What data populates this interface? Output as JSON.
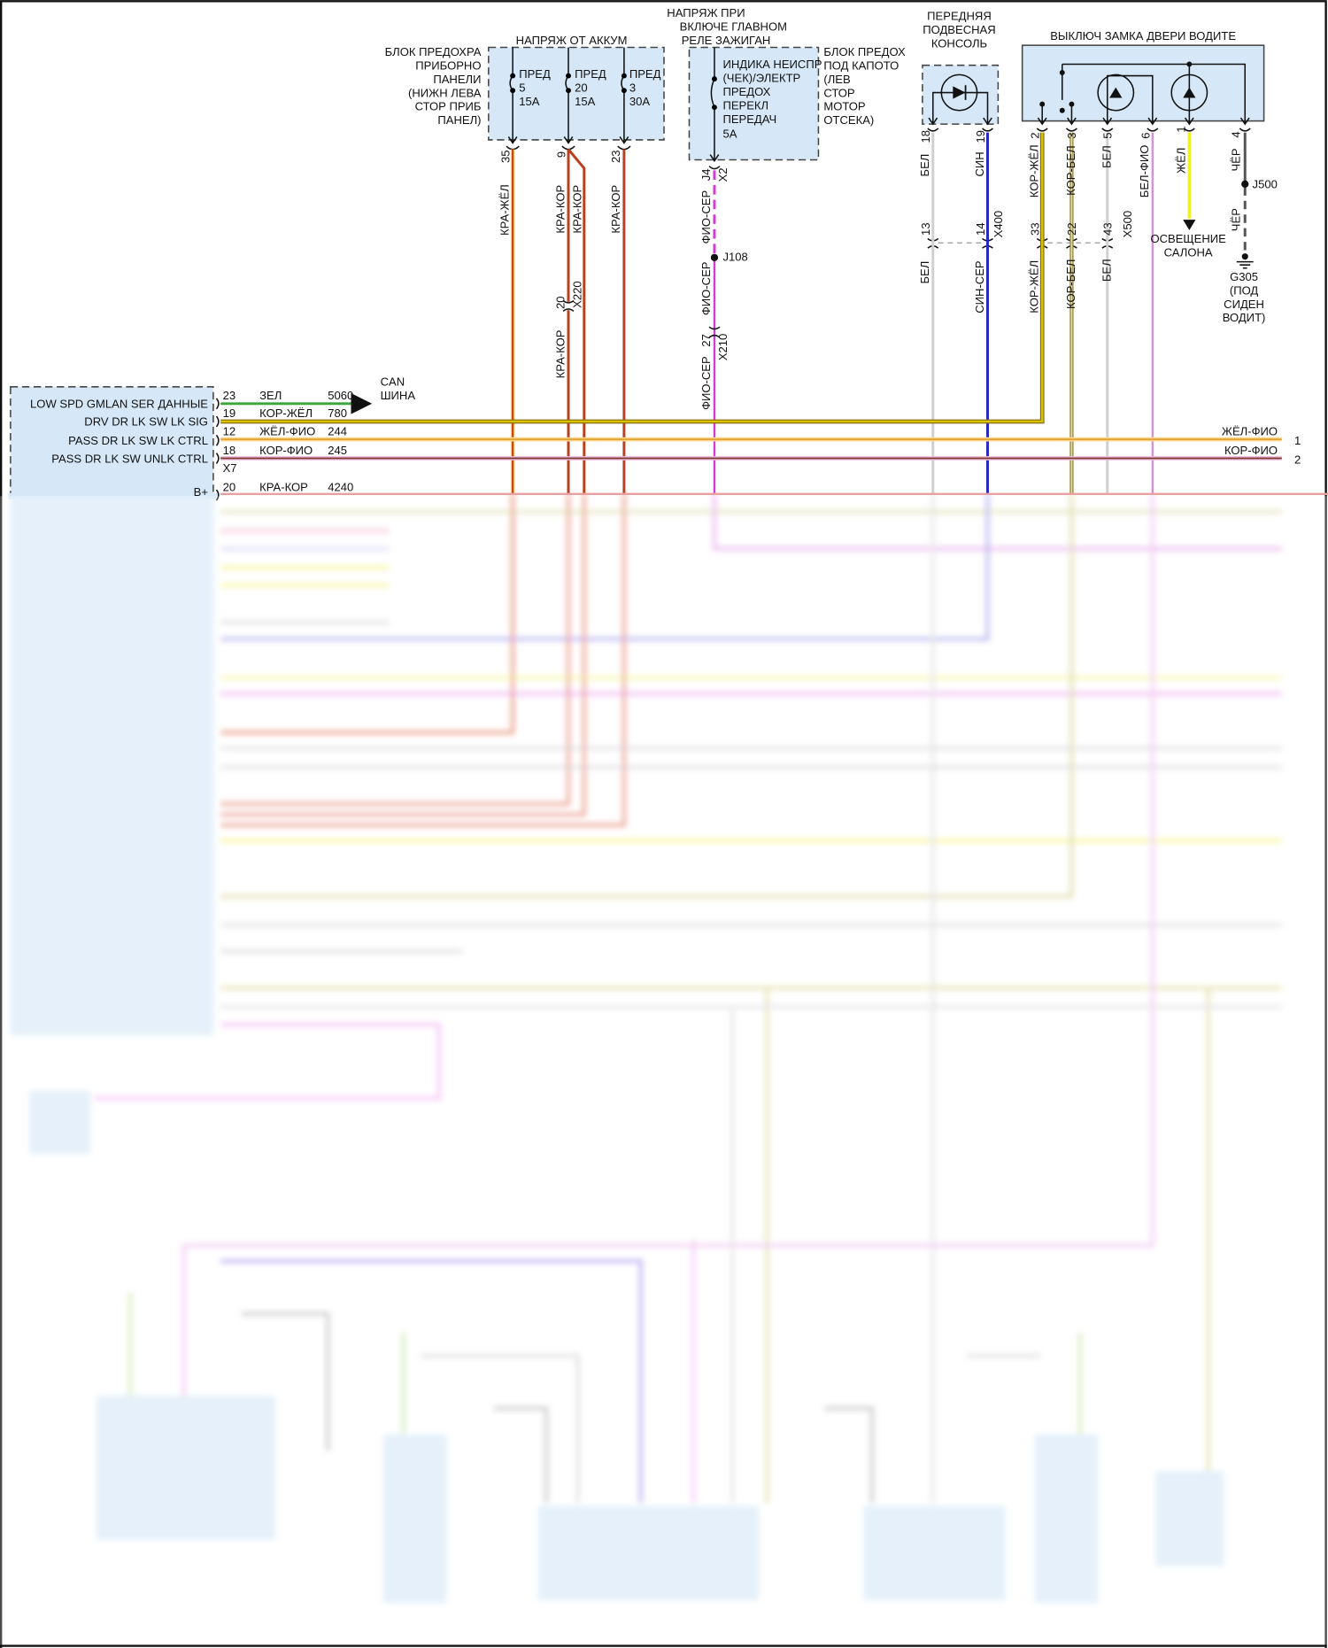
{
  "fuse_block_ip": {
    "label_lines": [
      "БЛОК ПРЕДОХРА",
      "ПРИБОРНО",
      "ПАНЕЛИ",
      "(НИЖН ЛЕВА",
      "СТОР ПРИБ",
      "ПАНЕЛ)"
    ],
    "supply_title": "НАПРЯЖ ОТ АККУМ",
    "fuses": [
      {
        "name": "ПРЕД",
        "number": "5",
        "rating": "15A",
        "pin": "35",
        "wire": "КРА-ЖЁЛ"
      },
      {
        "name": "ПРЕД",
        "number": "20",
        "rating": "15A",
        "pin": "9",
        "wire": "КРА-КОР",
        "wire2": "КРА-КОР"
      },
      {
        "name": "ПРЕД",
        "number": "3",
        "rating": "30A",
        "pin": "23",
        "wire": "КРА-КОР"
      }
    ],
    "x220": {
      "pin": "20",
      "connector": "X220",
      "wire_below": "КРА-КОР"
    }
  },
  "fuse_block_uh": {
    "supply_title_lines": [
      "НАПРЯЖ ПРИ",
      "ВКЛЮЧЕ ГЛАВНОМ",
      "РЕЛЕ ЗАЖИГАН"
    ],
    "fuse_lines": [
      "ИНДИКА НЕИСПР",
      "(ЧЕК)/ЭЛЕКТР",
      "ПРЕДОХ",
      "ПЕРЕКЛ",
      "ПЕРЕДАЧ",
      "5A"
    ],
    "label_lines": [
      "БЛОК ПРЕДОХ",
      "ПОД КАПОТО",
      "(ЛЕВ",
      "СТОР",
      "МОТОР",
      "ОТСЕКА)"
    ],
    "pin": "J4",
    "connector": "X2",
    "wire": "ФИО-СЕР",
    "splice": "J108",
    "wire2": "ФИО-СЕР",
    "x210": {
      "pin": "27",
      "connector": "X210",
      "wire_below": "ФИО-СЕР"
    }
  },
  "overhead_console": {
    "title_lines": [
      "ПЕРЕДНЯЯ",
      "ПОДВЕСНАЯ",
      "КОНСОЛЬ"
    ],
    "pins": [
      {
        "pin": "18",
        "wire": "БЕЛ",
        "inline_pin": "13",
        "wire_below": "БЕЛ"
      },
      {
        "pin": "19",
        "wire": "СИН",
        "inline_pin": "14",
        "wire_below": "СИН-СЕР"
      }
    ],
    "connector": "X400"
  },
  "driver_door_lock_switch": {
    "title": "ВЫКЛЮЧ ЗАМКА ДВЕРИ ВОДИТЕ",
    "pins": [
      {
        "pin": "2",
        "wire": "КОР-ЖЁЛ",
        "inline_pin": "33",
        "wire_below": "КОР-ЖЁЛ"
      },
      {
        "pin": "3",
        "wire": "КОР-БЕЛ",
        "inline_pin": "22",
        "wire_below": "КОР-БЕЛ"
      },
      {
        "pin": "5",
        "wire": "БЕЛ",
        "inline_pin": "43",
        "wire_below": "БЕЛ"
      },
      {
        "pin": "6",
        "wire": "БЕЛ-ФИО"
      },
      {
        "pin": "1",
        "wire": "ЖЁЛ"
      },
      {
        "pin": "4",
        "wire": "ЧЁР",
        "wire_below": "ЧЁР"
      }
    ],
    "connector": "X500",
    "interior_lighting_lines": [
      "ОСВЕЩЕНИЕ",
      "САЛОНА"
    ],
    "splice": "J500",
    "ground": "G305",
    "ground_location_lines": [
      "(ПОД",
      "СИДЕН",
      "ВОДИТ)"
    ]
  },
  "bcm": {
    "connector": "X7",
    "partial_label": "B+",
    "circuits": [
      {
        "signal": "LOW SPD GMLAN SER ДАННЫЕ",
        "pin": "23",
        "wire": "ЗЕЛ",
        "circuit": "5060"
      },
      {
        "signal": "DRV DR LK SW LK SIG",
        "pin": "19",
        "wire": "КОР-ЖЁЛ",
        "circuit": "780"
      },
      {
        "signal": "PASS DR LK SW LK CTRL",
        "pin": "12",
        "wire": "ЖЁЛ-ФИО",
        "circuit": "244"
      },
      {
        "signal": "PASS DR LK SW UNLK CTRL",
        "pin": "18",
        "wire": "КОР-ФИО",
        "circuit": "245"
      },
      {
        "signal": "",
        "pin": "20",
        "wire": "КРА-КОР",
        "circuit": "4240"
      }
    ],
    "can_bus_lines": [
      "CAN",
      "ШИНА"
    ]
  },
  "right_edge": [
    {
      "wire": "ЖЁЛ-ФИО",
      "ref": "1"
    },
    {
      "wire": "КОР-ФИО",
      "ref": "2"
    }
  ],
  "colors": {
    "component_fill": "#d6e8f8",
    "red_brown": "#b8401e",
    "red_yellow": "#c84a1c",
    "violet_grey": "#d63ad6",
    "blue": "#2727c4",
    "brown_yellow": "#c9b000",
    "yellow": "#f2ef2a",
    "green": "#3aa53a",
    "white": "#cfcfcf",
    "pink": "#e4a0e4"
  }
}
